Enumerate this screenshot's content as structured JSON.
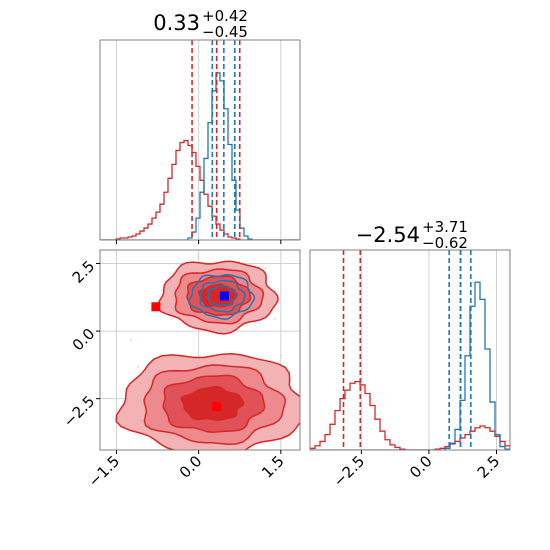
{
  "chart_data": {
    "type": "corner-plot",
    "params": [
      "p0",
      "p1"
    ],
    "colors": {
      "series_a": "#d62728",
      "series_b": "#1f77b4",
      "marker_a": "#ff0000",
      "marker_b": "#0000ff"
    },
    "titles": {
      "p0": {
        "median": "0.33",
        "plus": "+0.42",
        "minus": "−0.45"
      },
      "p1": {
        "median": "−2.54",
        "plus": "+3.71",
        "minus": "−0.62"
      }
    },
    "axes": {
      "p0": {
        "range": [
          -1.8,
          1.85
        ],
        "ticks": [
          -1.5,
          0.0,
          1.5
        ],
        "tick_labels": [
          "−1.5",
          "0.0",
          "1.5"
        ]
      },
      "p1": {
        "range": [
          -4.4,
          3.0
        ],
        "ticks": [
          -2.5,
          0.0,
          2.5
        ],
        "tick_labels": [
          "−2.5",
          "0.0",
          "2.5"
        ]
      }
    },
    "quantiles": {
      "series_a": {
        "p0": [
          -0.12,
          0.33,
          0.75
        ],
        "p1": [
          -3.16,
          -2.54,
          1.17
        ]
      },
      "series_b": {
        "p0": [
          0.25,
          0.46,
          0.66
        ],
        "p1": [
          0.75,
          1.17,
          1.55
        ]
      }
    },
    "hist_p0": {
      "bins": [
        -1.8,
        1.85
      ],
      "series_a": [
        0,
        0,
        0,
        0,
        1,
        2,
        2,
        3,
        4,
        6,
        9,
        12,
        16,
        22,
        28,
        36,
        48,
        62,
        76,
        90,
        98,
        100,
        95,
        88,
        74,
        60,
        46,
        34,
        24,
        16,
        10,
        6,
        3,
        2,
        1,
        0,
        0,
        0,
        0,
        0,
        0,
        0,
        0,
        0,
        0,
        0,
        0,
        0,
        0,
        0
      ],
      "series_b": [
        0,
        0,
        0,
        0,
        0,
        0,
        0,
        0,
        0,
        0,
        0,
        0,
        0,
        0,
        0,
        0,
        0,
        0,
        0,
        0,
        0,
        0,
        2,
        8,
        22,
        48,
        82,
        118,
        150,
        168,
        160,
        132,
        96,
        60,
        30,
        12,
        4,
        1,
        0,
        0,
        0,
        0,
        0,
        0,
        0,
        0,
        0,
        0,
        0,
        0
      ]
    },
    "hist_p1": {
      "bins": [
        -4.4,
        3.0
      ],
      "series_a": [
        2,
        5,
        10,
        18,
        30,
        46,
        60,
        70,
        78,
        80,
        76,
        66,
        52,
        36,
        22,
        12,
        6,
        3,
        1,
        0,
        0,
        0,
        0,
        0,
        0,
        1,
        2,
        4,
        7,
        10,
        14,
        18,
        22,
        26,
        28,
        26,
        22,
        16,
        10,
        5
      ],
      "series_b": [
        0,
        0,
        0,
        0,
        0,
        0,
        0,
        0,
        0,
        0,
        0,
        0,
        0,
        0,
        0,
        0,
        0,
        0,
        0,
        0,
        0,
        0,
        0,
        0,
        0,
        0,
        0,
        2,
        8,
        24,
        58,
        110,
        168,
        196,
        176,
        118,
        56,
        18,
        4,
        1
      ]
    },
    "scatter": {
      "blobs_a": [
        {
          "cx": 0.35,
          "cy": 1.3,
          "sx": 0.5,
          "sy": 0.62
        },
        {
          "cx": 0.25,
          "cy": -2.7,
          "sx": 0.8,
          "sy": 0.9
        }
      ],
      "blob_b": {
        "cx": 0.42,
        "cy": 1.3,
        "sx": 0.3,
        "sy": 0.42
      }
    },
    "markers": [
      {
        "x": -0.78,
        "y": 0.9,
        "color": "marker_a"
      },
      {
        "x": 0.33,
        "y": -2.8,
        "color": "marker_a"
      },
      {
        "x": 0.47,
        "y": 1.3,
        "color": "marker_b"
      }
    ]
  }
}
